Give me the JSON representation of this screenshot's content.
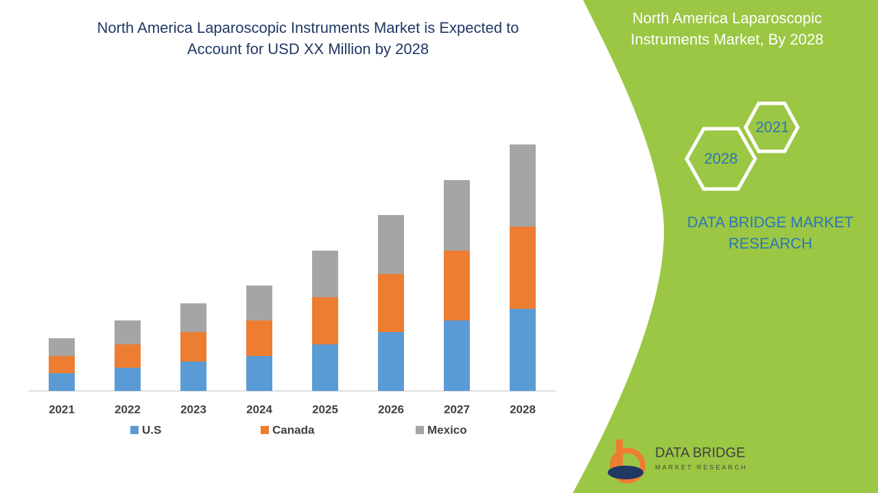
{
  "chart_data": {
    "type": "stacked-bar",
    "title": [
      "North America Laparoscopic Instruments Market is Expected to",
      "Account for USD XX Million by 2028"
    ],
    "categories": [
      "2021",
      "2022",
      "2023",
      "2024",
      "2025",
      "2026",
      "2027",
      "2028"
    ],
    "series": [
      {
        "name": "U.S",
        "color": "#5b9bd5",
        "values": [
          26,
          34,
          43,
          51,
          68,
          86,
          103,
          120
        ]
      },
      {
        "name": "Canada",
        "color": "#ed7d31",
        "values": [
          25,
          34,
          43,
          52,
          69,
          85,
          102,
          120
        ]
      },
      {
        "name": "Mexico",
        "color": "#a5a5a5",
        "values": [
          26,
          35,
          42,
          51,
          68,
          86,
          103,
          120
        ]
      }
    ],
    "ylim": [
      0,
      400
    ]
  },
  "panel": {
    "heading": [
      "North America Laparoscopic",
      "Instruments Market, By 2028"
    ],
    "hexagons": [
      "2021",
      "2028"
    ],
    "brand": [
      "DATA BRIDGE MARKET",
      "RESEARCH"
    ],
    "logo": {
      "name": "DATA BRIDGE",
      "tagline": "MARKET RESEARCH"
    }
  }
}
